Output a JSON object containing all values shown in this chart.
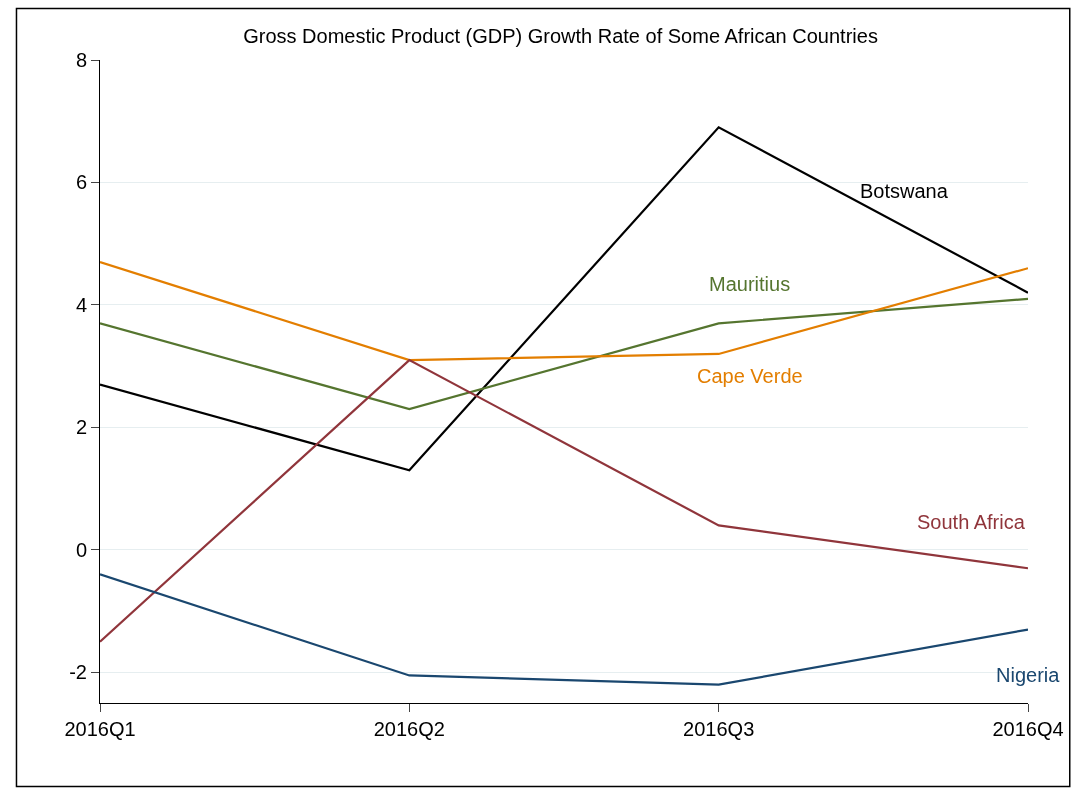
{
  "chart_data": {
    "type": "line",
    "title": "Gross Domestic Product (GDP) Growth Rate of Some African Countries",
    "categories": [
      "2016Q1",
      "2016Q2",
      "2016Q3",
      "2016Q4"
    ],
    "series": [
      {
        "name": "Botswana",
        "color": "#000000",
        "values": [
          2.7,
          1.3,
          6.9,
          4.2
        ]
      },
      {
        "name": "Mauritius",
        "color": "#55752f",
        "values": [
          3.7,
          2.3,
          3.7,
          4.1
        ]
      },
      {
        "name": "Cape Verde",
        "color": "#e37e00",
        "values": [
          4.7,
          3.1,
          3.2,
          4.6
        ]
      },
      {
        "name": "South Africa",
        "color": "#90353b",
        "values": [
          -1.5,
          3.1,
          0.4,
          -0.3
        ]
      },
      {
        "name": "Nigeria",
        "color": "#1a476f",
        "values": [
          -0.4,
          -2.05,
          -2.2,
          -1.3
        ]
      }
    ],
    "ylim": [
      -2.5,
      8
    ],
    "yticks": [
      -2,
      0,
      2,
      4,
      6,
      8
    ],
    "grid": "y",
    "legend": false,
    "marker": "none",
    "line_style": "solid"
  }
}
